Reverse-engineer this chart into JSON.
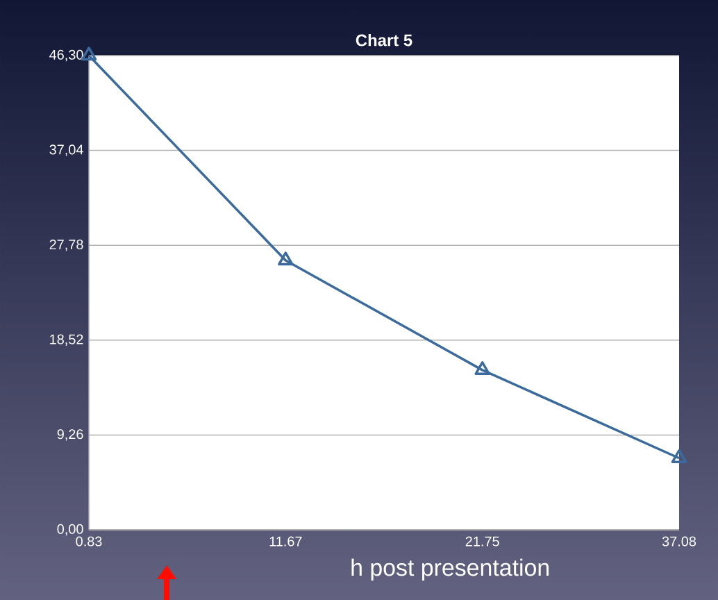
{
  "chart_data": {
    "type": "line",
    "title": "Chart 5",
    "xlabel": "h post presentation",
    "categories": [
      "0.83",
      "11.67",
      "21.75",
      "37.08"
    ],
    "series": [
      {
        "color": "#3b6a9c",
        "values": [
          46.3,
          26.3,
          15.6,
          7.0
        ]
      }
    ],
    "ylim": [
      0,
      46.3
    ],
    "yticks": [
      {
        "value": 0,
        "label": "0,00"
      },
      {
        "value": 9.26,
        "label": "9,26"
      },
      {
        "value": 18.52,
        "label": "18,52"
      },
      {
        "value": 27.78,
        "label": "27,78"
      },
      {
        "value": 37.04,
        "label": "37,04"
      },
      {
        "value": 46.3,
        "label": "46,30"
      }
    ],
    "grid": "y",
    "marker": "triangle",
    "line_style": "solid"
  }
}
